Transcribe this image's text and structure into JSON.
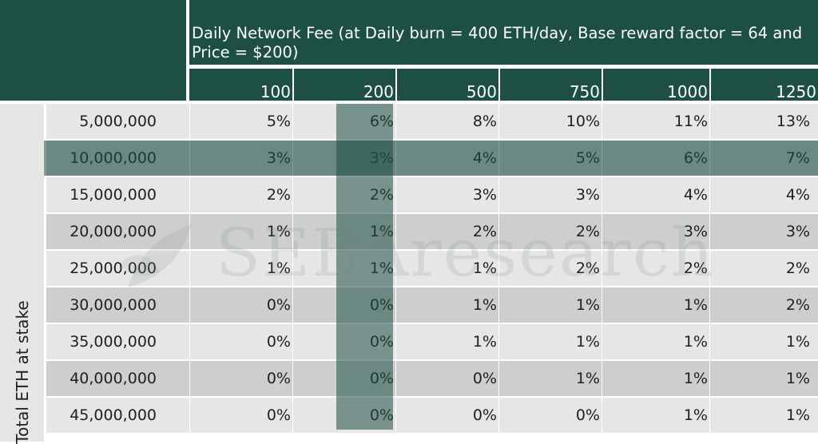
{
  "header": {
    "title": "Daily Network Fee (at Daily burn = 400 ETH/day, Base reward factor = 64 and Price = $200)",
    "columns": [
      "100",
      "200",
      "500",
      "750",
      "1000",
      "1250"
    ]
  },
  "side_label": "Total ETH at stake",
  "rows": [
    {
      "label": "5,000,000",
      "values": [
        "5%",
        "6%",
        "8%",
        "10%",
        "11%",
        "13%"
      ]
    },
    {
      "label": "10,000,000",
      "values": [
        "3%",
        "3%",
        "4%",
        "5%",
        "6%",
        "7%"
      ]
    },
    {
      "label": "15,000,000",
      "values": [
        "2%",
        "2%",
        "3%",
        "3%",
        "4%",
        "4%"
      ]
    },
    {
      "label": "20,000,000",
      "values": [
        "1%",
        "1%",
        "2%",
        "2%",
        "3%",
        "3%"
      ]
    },
    {
      "label": "25,000,000",
      "values": [
        "1%",
        "1%",
        "1%",
        "2%",
        "2%",
        "2%"
      ]
    },
    {
      "label": "30,000,000",
      "values": [
        "0%",
        "0%",
        "1%",
        "1%",
        "1%",
        "2%"
      ]
    },
    {
      "label": "35,000,000",
      "values": [
        "0%",
        "0%",
        "1%",
        "1%",
        "1%",
        "1%"
      ]
    },
    {
      "label": "40,000,000",
      "values": [
        "0%",
        "0%",
        "0%",
        "1%",
        "1%",
        "1%"
      ]
    },
    {
      "label": "45,000,000",
      "values": [
        "0%",
        "0%",
        "0%",
        "0%",
        "1%",
        "1%"
      ]
    }
  ],
  "highlight": {
    "column": "200",
    "row": "10,000,000"
  },
  "colors": {
    "header": "#1d4f45",
    "row_light": "#e6e6e5",
    "row_dark": "#cdcfcd",
    "highlight": "#1d4f45"
  },
  "watermark": {
    "text": "SEBAresearch",
    "icon": "leaf-logo-icon"
  }
}
